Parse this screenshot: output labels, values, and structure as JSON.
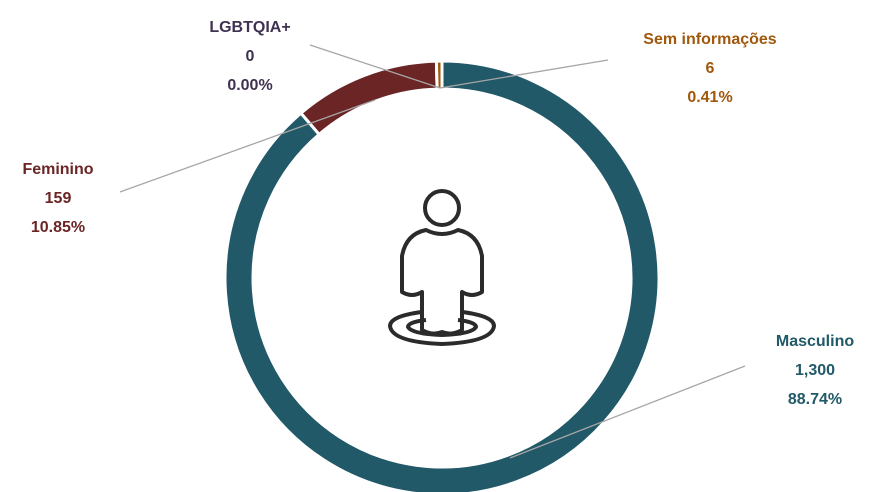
{
  "chart_data": {
    "type": "donut",
    "categories": [
      "Masculino",
      "Feminino",
      "LGBTQIA+",
      "Sem informações"
    ],
    "values": [
      1300,
      159,
      0,
      6
    ],
    "value_labels": [
      "1,300",
      "159",
      "0",
      "6"
    ],
    "percentages": [
      88.74,
      10.85,
      0,
      0.41
    ],
    "percentage_labels": [
      "88.74%",
      "10.85%",
      "0.00%",
      "0.41%"
    ],
    "colors": [
      "#215968",
      "#6b2525",
      "#3f3151",
      "#a0580c"
    ]
  }
}
